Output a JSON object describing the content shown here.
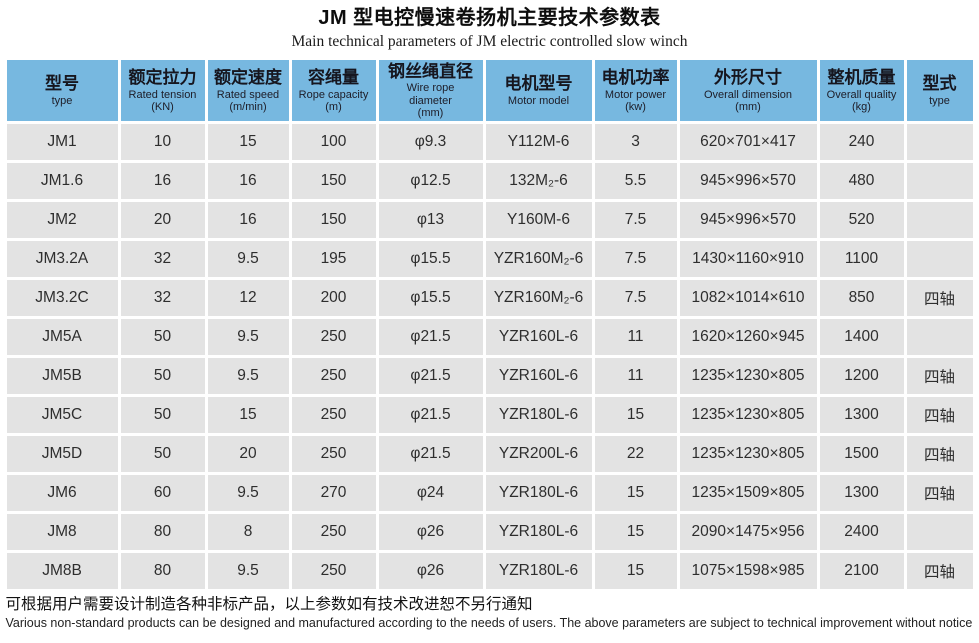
{
  "title": "JM 型电控慢速卷扬机主要技术参数表",
  "subtitle": "Main technical parameters of JM electric controlled slow winch",
  "colors": {
    "header_bg": "#77b8e0",
    "row_bg": "#e3e3e3",
    "gap": "#ffffff"
  },
  "table": {
    "columns": [
      {
        "zh": "型号",
        "en": [
          "type"
        ]
      },
      {
        "zh": "额定拉力",
        "en": [
          "Rated tension",
          "(KN)"
        ]
      },
      {
        "zh": "额定速度",
        "en": [
          "Rated speed",
          "(m/min)"
        ]
      },
      {
        "zh": "容绳量",
        "en": [
          "Rope capacity",
          "(m)"
        ]
      },
      {
        "zh": "钢丝绳直径",
        "en": [
          "Wire rope",
          "diameter",
          "(mm)"
        ]
      },
      {
        "zh": "电机型号",
        "en": [
          "Motor model"
        ]
      },
      {
        "zh": "电机功率",
        "en": [
          "Motor power",
          "(kw)"
        ]
      },
      {
        "zh": "外形尺寸",
        "en": [
          "Overall dimension",
          "(mm)"
        ]
      },
      {
        "zh": "整机质量",
        "en": [
          "Overall quality",
          "(kg)"
        ]
      },
      {
        "zh": "型式",
        "en": [
          "type"
        ]
      }
    ],
    "rows": [
      [
        "JM1",
        "10",
        "15",
        "100",
        "φ9.3",
        "Y112M-6",
        "3",
        "620×701×417",
        "240",
        ""
      ],
      [
        "JM1.6",
        "16",
        "16",
        "150",
        "φ12.5",
        "132M₂-6",
        "5.5",
        "945×996×570",
        "480",
        ""
      ],
      [
        "JM2",
        "20",
        "16",
        "150",
        "φ13",
        "Y160M-6",
        "7.5",
        "945×996×570",
        "520",
        ""
      ],
      [
        "JM3.2A",
        "32",
        "9.5",
        "195",
        "φ15.5",
        "YZR160M₂-6",
        "7.5",
        "1430×1160×910",
        "1100",
        ""
      ],
      [
        "JM3.2C",
        "32",
        "12",
        "200",
        "φ15.5",
        "YZR160M₂-6",
        "7.5",
        "1082×1014×610",
        "850",
        "四轴"
      ],
      [
        "JM5A",
        "50",
        "9.5",
        "250",
        "φ21.5",
        "YZR160L-6",
        "11",
        "1620×1260×945",
        "1400",
        ""
      ],
      [
        "JM5B",
        "50",
        "9.5",
        "250",
        "φ21.5",
        "YZR160L-6",
        "11",
        "1235×1230×805",
        "1200",
        "四轴"
      ],
      [
        "JM5C",
        "50",
        "15",
        "250",
        "φ21.5",
        "YZR180L-6",
        "15",
        "1235×1230×805",
        "1300",
        "四轴"
      ],
      [
        "JM5D",
        "50",
        "20",
        "250",
        "φ21.5",
        "YZR200L-6",
        "22",
        "1235×1230×805",
        "1500",
        "四轴"
      ],
      [
        "JM6",
        "60",
        "9.5",
        "270",
        "φ24",
        "YZR180L-6",
        "15",
        "1235×1509×805",
        "1300",
        "四轴"
      ],
      [
        "JM8",
        "80",
        "8",
        "250",
        "φ26",
        "YZR180L-6",
        "15",
        "2090×1475×956",
        "2400",
        ""
      ],
      [
        "JM8B",
        "80",
        "9.5",
        "250",
        "φ26",
        "YZR180L-6",
        "15",
        "1075×1598×985",
        "2100",
        "四轴"
      ]
    ]
  },
  "footer": {
    "zh": "可根据用户需要设计制造各种非标产品，以上参数如有技术改进恕不另行通知",
    "en": "Various non-standard products can be designed and manufactured according to the needs of users. The above parameters are subject to technical improvement without notice"
  }
}
